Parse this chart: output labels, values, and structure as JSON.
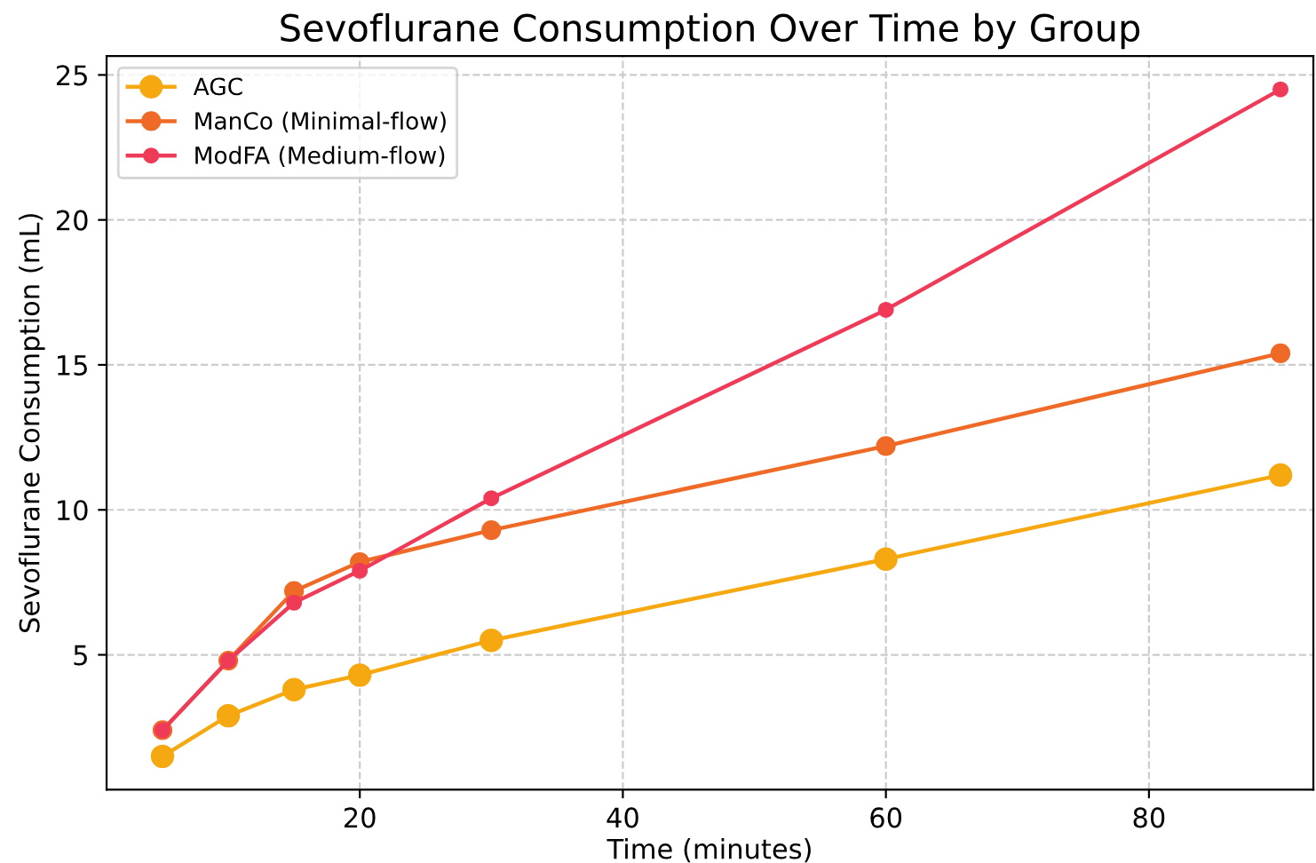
{
  "chart_data": {
    "type": "line",
    "title": "Sevoflurane Consumption Over Time by Group",
    "xlabel": "Time (minutes)",
    "ylabel": "Sevoflurane Consumption (mL)",
    "x": [
      5,
      10,
      15,
      20,
      30,
      60,
      90
    ],
    "series": [
      {
        "name": "AGC",
        "color": "#f5a80f",
        "values": [
          1.5,
          2.9,
          3.8,
          4.3,
          5.5,
          8.3,
          11.2
        ]
      },
      {
        "name": "ManCo (Minimal-flow)",
        "color": "#ef6a26",
        "values": [
          2.4,
          4.8,
          7.2,
          8.2,
          9.3,
          12.2,
          15.4
        ]
      },
      {
        "name": "ModFA (Medium-flow)",
        "color": "#ef3a58",
        "values": [
          2.4,
          4.8,
          6.8,
          7.9,
          10.4,
          16.9,
          24.5
        ]
      }
    ],
    "xlim": [
      0.75,
      92.5
    ],
    "ylim": [
      0.35,
      25.65
    ],
    "xticks": [
      20,
      40,
      60,
      80
    ],
    "yticks": [
      5,
      10,
      15,
      20,
      25
    ],
    "grid": true,
    "legend": "top left",
    "marker": "circle",
    "line_style": "solid"
  }
}
